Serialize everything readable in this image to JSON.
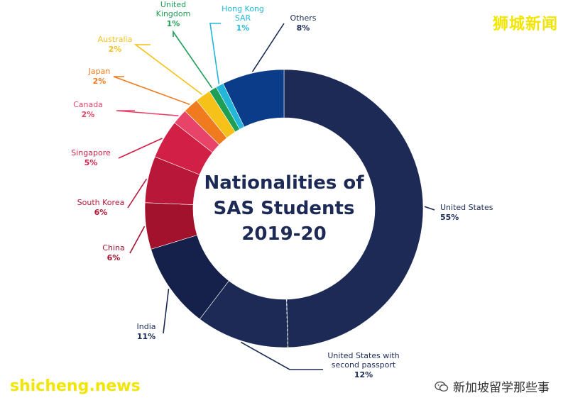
{
  "chart_data": {
    "type": "pie",
    "donut": true,
    "title": "Nationalities of SAS Students 2019-20",
    "title_lines": [
      "Nationalities of",
      "SAS Students",
      "2019-20"
    ],
    "slices": [
      {
        "name": "United States",
        "value": 55,
        "label_lines": [
          "United States"
        ],
        "pct_text": "55%",
        "color": "#1c2a55"
      },
      {
        "name": "United States with second passport",
        "value": 12,
        "label_lines": [
          "United States with",
          "second passport"
        ],
        "pct_text": "12%",
        "color": "#1c2a55"
      },
      {
        "name": "India",
        "value": 11,
        "label_lines": [
          "India"
        ],
        "pct_text": "11%",
        "color": "#15214a"
      },
      {
        "name": "China",
        "value": 6,
        "label_lines": [
          "China"
        ],
        "pct_text": "6%",
        "color": "#a3122c"
      },
      {
        "name": "South Korea",
        "value": 6,
        "label_lines": [
          "South Korea"
        ],
        "pct_text": "6%",
        "color": "#b9173a"
      },
      {
        "name": "Singapore",
        "value": 5,
        "label_lines": [
          "Singapore"
        ],
        "pct_text": "5%",
        "color": "#d11f45"
      },
      {
        "name": "Canada",
        "value": 2,
        "label_lines": [
          "Canada"
        ],
        "pct_text": "2%",
        "color": "#e8446a"
      },
      {
        "name": "Japan",
        "value": 2,
        "label_lines": [
          "Japan"
        ],
        "pct_text": "2%",
        "color": "#f07a1e"
      },
      {
        "name": "Australia",
        "value": 2,
        "label_lines": [
          "Australia"
        ],
        "pct_text": "2%",
        "color": "#f6c219"
      },
      {
        "name": "United Kingdom",
        "value": 1,
        "label_lines": [
          "United",
          "Kingdom"
        ],
        "pct_text": "1%",
        "color": "#1f9e55"
      },
      {
        "name": "Hong Kong SAR",
        "value": 1,
        "label_lines": [
          "Hong Kong",
          "SAR"
        ],
        "pct_text": "1%",
        "color": "#22b6d8"
      },
      {
        "name": "Others",
        "value": 8,
        "label_lines": [
          "Others"
        ],
        "pct_text": "8%",
        "color": "#0b3c8a"
      }
    ]
  },
  "watermarks": {
    "top_right": "狮城新闻",
    "bottom_left": "shicheng.news",
    "bottom_right": "新加坡留学那些事"
  }
}
